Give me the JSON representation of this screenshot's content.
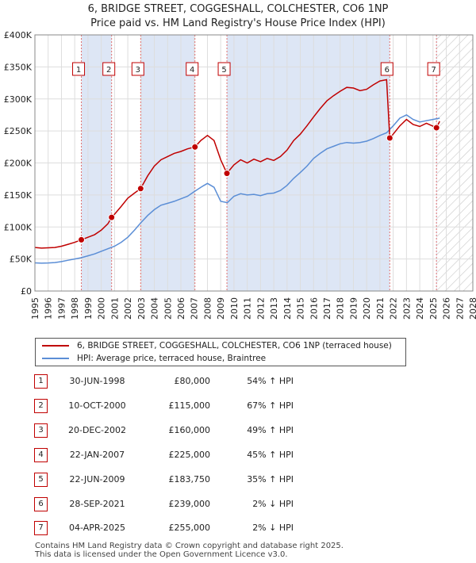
{
  "title_line1": "6, BRIDGE STREET, COGGESHALL, COLCHESTER, CO6 1NP",
  "title_line2": "Price paid vs. HM Land Registry's House Price Index (HPI)",
  "chart_data": {
    "type": "line",
    "title": "6, BRIDGE STREET, COGGESHALL, COLCHESTER, CO6 1NP",
    "subtitle": "Price paid vs. HM Land Registry's House Price Index (HPI)",
    "xlim": [
      1995,
      2028
    ],
    "ylim": [
      0,
      400000
    ],
    "x_ticks": [
      1995,
      1996,
      1997,
      1998,
      1999,
      2000,
      2001,
      2002,
      2003,
      2004,
      2005,
      2006,
      2007,
      2008,
      2009,
      2010,
      2011,
      2012,
      2013,
      2014,
      2015,
      2016,
      2017,
      2018,
      2019,
      2020,
      2021,
      2022,
      2023,
      2024,
      2025,
      2026,
      2027,
      2028
    ],
    "y_ticks": [
      0,
      50000,
      100000,
      150000,
      200000,
      250000,
      300000,
      350000,
      400000
    ],
    "y_tick_labels": [
      "£0",
      "£50K",
      "£100K",
      "£150K",
      "£200K",
      "£250K",
      "£300K",
      "£350K",
      "£400K"
    ],
    "forecast_start": 2025.3,
    "colors": {
      "property": "#c00000",
      "hpi": "#5b8ed6",
      "shade": "#dde6f5",
      "grid": "#dddddd",
      "marker_line": "#e07070"
    },
    "series": [
      {
        "name": "6, BRIDGE STREET, COGGESHALL, COLCHESTER, CO6 1NP (terraced house)",
        "color": "#c00000",
        "points": [
          [
            1995.0,
            68000
          ],
          [
            1995.5,
            67000
          ],
          [
            1996.0,
            67500
          ],
          [
            1996.5,
            68000
          ],
          [
            1997.0,
            70000
          ],
          [
            1997.5,
            73000
          ],
          [
            1998.0,
            76000
          ],
          [
            1998.5,
            80000
          ],
          [
            1999.0,
            84000
          ],
          [
            1999.5,
            88000
          ],
          [
            2000.0,
            95000
          ],
          [
            2000.5,
            105000
          ],
          [
            2000.78,
            115000
          ],
          [
            2001.0,
            120000
          ],
          [
            2001.5,
            132000
          ],
          [
            2002.0,
            145000
          ],
          [
            2002.5,
            153000
          ],
          [
            2002.97,
            160000
          ],
          [
            2003.5,
            180000
          ],
          [
            2004.0,
            195000
          ],
          [
            2004.5,
            205000
          ],
          [
            2005.0,
            210000
          ],
          [
            2005.5,
            215000
          ],
          [
            2006.0,
            218000
          ],
          [
            2006.5,
            222000
          ],
          [
            2007.06,
            225000
          ],
          [
            2007.5,
            235000
          ],
          [
            2008.0,
            243000
          ],
          [
            2008.5,
            235000
          ],
          [
            2009.0,
            205000
          ],
          [
            2009.47,
            183750
          ],
          [
            2010.0,
            197000
          ],
          [
            2010.5,
            205000
          ],
          [
            2011.0,
            200000
          ],
          [
            2011.5,
            206000
          ],
          [
            2012.0,
            202000
          ],
          [
            2012.5,
            207000
          ],
          [
            2013.0,
            204000
          ],
          [
            2013.5,
            210000
          ],
          [
            2014.0,
            220000
          ],
          [
            2014.5,
            235000
          ],
          [
            2015.0,
            245000
          ],
          [
            2015.5,
            258000
          ],
          [
            2016.0,
            272000
          ],
          [
            2016.5,
            285000
          ],
          [
            2017.0,
            297000
          ],
          [
            2017.5,
            305000
          ],
          [
            2018.0,
            312000
          ],
          [
            2018.5,
            318000
          ],
          [
            2019.0,
            317000
          ],
          [
            2019.5,
            313000
          ],
          [
            2020.0,
            315000
          ],
          [
            2020.5,
            322000
          ],
          [
            2021.0,
            328000
          ],
          [
            2021.5,
            330000
          ],
          [
            2021.74,
            239000
          ],
          [
            2022.0,
            245000
          ],
          [
            2022.5,
            258000
          ],
          [
            2023.0,
            268000
          ],
          [
            2023.5,
            260000
          ],
          [
            2024.0,
            257000
          ],
          [
            2024.5,
            262000
          ],
          [
            2025.26,
            255000
          ],
          [
            2025.5,
            265000
          ]
        ]
      },
      {
        "name": "HPI: Average price, terraced house, Braintree",
        "color": "#5b8ed6",
        "points": [
          [
            1995.0,
            44000
          ],
          [
            1995.5,
            43500
          ],
          [
            1996.0,
            43800
          ],
          [
            1996.5,
            44500
          ],
          [
            1997.0,
            46000
          ],
          [
            1997.5,
            48000
          ],
          [
            1998.0,
            50000
          ],
          [
            1998.5,
            52000
          ],
          [
            1999.0,
            55000
          ],
          [
            1999.5,
            58000
          ],
          [
            2000.0,
            62000
          ],
          [
            2000.5,
            66000
          ],
          [
            2001.0,
            70000
          ],
          [
            2001.5,
            76000
          ],
          [
            2002.0,
            84000
          ],
          [
            2002.5,
            95000
          ],
          [
            2003.0,
            107000
          ],
          [
            2003.5,
            118000
          ],
          [
            2004.0,
            127000
          ],
          [
            2004.5,
            134000
          ],
          [
            2005.0,
            137000
          ],
          [
            2005.5,
            140000
          ],
          [
            2006.0,
            144000
          ],
          [
            2006.5,
            148000
          ],
          [
            2007.0,
            155000
          ],
          [
            2007.5,
            162000
          ],
          [
            2008.0,
            168000
          ],
          [
            2008.5,
            162000
          ],
          [
            2009.0,
            140000
          ],
          [
            2009.5,
            138000
          ],
          [
            2010.0,
            148000
          ],
          [
            2010.5,
            152000
          ],
          [
            2011.0,
            150000
          ],
          [
            2011.5,
            151000
          ],
          [
            2012.0,
            149000
          ],
          [
            2012.5,
            152000
          ],
          [
            2013.0,
            153000
          ],
          [
            2013.5,
            157000
          ],
          [
            2014.0,
            165000
          ],
          [
            2014.5,
            176000
          ],
          [
            2015.0,
            185000
          ],
          [
            2015.5,
            195000
          ],
          [
            2016.0,
            207000
          ],
          [
            2016.5,
            215000
          ],
          [
            2017.0,
            222000
          ],
          [
            2017.5,
            226000
          ],
          [
            2018.0,
            230000
          ],
          [
            2018.5,
            232000
          ],
          [
            2019.0,
            231000
          ],
          [
            2019.5,
            232000
          ],
          [
            2020.0,
            234000
          ],
          [
            2020.5,
            238000
          ],
          [
            2021.0,
            243000
          ],
          [
            2021.5,
            247000
          ],
          [
            2022.0,
            258000
          ],
          [
            2022.5,
            270000
          ],
          [
            2023.0,
            275000
          ],
          [
            2023.5,
            268000
          ],
          [
            2024.0,
            264000
          ],
          [
            2024.5,
            266000
          ],
          [
            2025.0,
            268000
          ],
          [
            2025.5,
            270000
          ]
        ]
      }
    ]
  },
  "legend": {
    "property_label": "6, BRIDGE STREET, COGGESHALL, COLCHESTER, CO6 1NP (terraced house)",
    "hpi_label": "HPI: Average price, terraced house, Braintree"
  },
  "sales": [
    {
      "num": "1",
      "date": "30-JUN-1998",
      "price": "£80,000",
      "hpi": "54% ↑ HPI",
      "x": 1998.5,
      "value": 80000
    },
    {
      "num": "2",
      "date": "10-OCT-2000",
      "price": "£115,000",
      "hpi": "67% ↑ HPI",
      "x": 2000.78,
      "value": 115000
    },
    {
      "num": "3",
      "date": "20-DEC-2002",
      "price": "£160,000",
      "hpi": "49% ↑ HPI",
      "x": 2002.97,
      "value": 160000
    },
    {
      "num": "4",
      "date": "22-JAN-2007",
      "price": "£225,000",
      "hpi": "45% ↑ HPI",
      "x": 2007.06,
      "value": 225000
    },
    {
      "num": "5",
      "date": "22-JUN-2009",
      "price": "£183,750",
      "hpi": "35% ↑ HPI",
      "x": 2009.47,
      "value": 183750
    },
    {
      "num": "6",
      "date": "28-SEP-2021",
      "price": "£239,000",
      "hpi": "2% ↓ HPI",
      "x": 2021.74,
      "value": 239000
    },
    {
      "num": "7",
      "date": "04-APR-2025",
      "price": "£255,000",
      "hpi": "2% ↓ HPI",
      "x": 2025.26,
      "value": 255000
    }
  ],
  "footer": {
    "line1": "Contains HM Land Registry data © Crown copyright and database right 2025.",
    "line2": "This data is licensed under the Open Government Licence v3.0."
  }
}
